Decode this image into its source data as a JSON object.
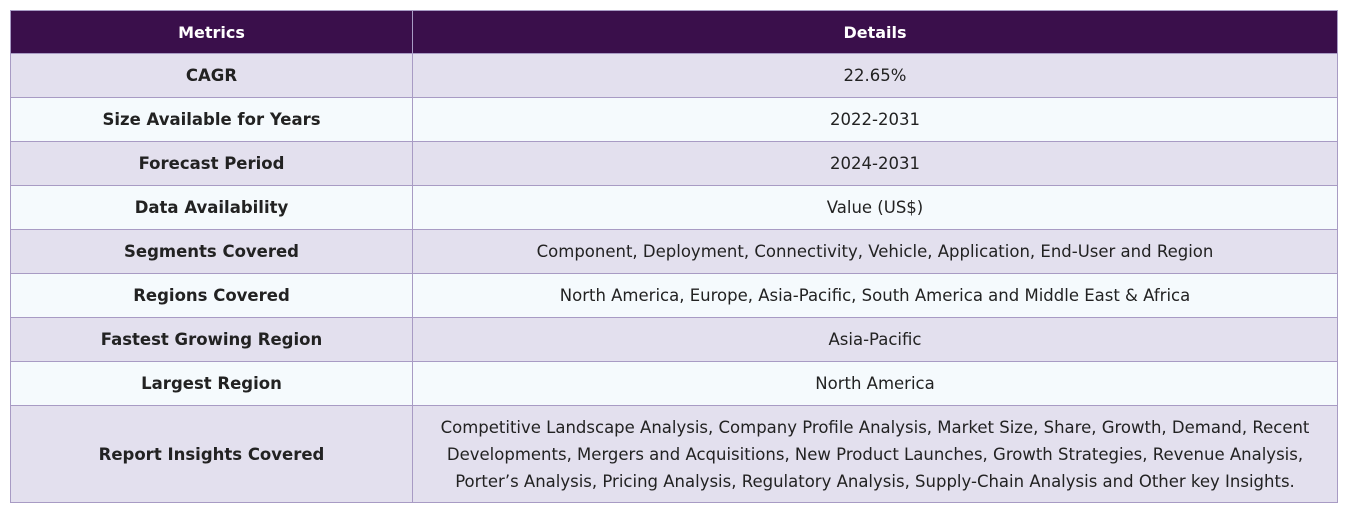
{
  "table": {
    "headers": [
      "Metrics",
      "Details"
    ],
    "rows": [
      {
        "metric": "CAGR",
        "detail": "22.65%"
      },
      {
        "metric": "Size Available for Years",
        "detail": "2022-2031"
      },
      {
        "metric": "Forecast Period",
        "detail": "2024-2031"
      },
      {
        "metric": "Data Availability",
        "detail": "Value (US$)"
      },
      {
        "metric": "Segments Covered",
        "detail": "Component, Deployment, Connectivity, Vehicle, Application, End-User and Region"
      },
      {
        "metric": "Regions Covered",
        "detail": "North America, Europe, Asia-Pacific, South America and Middle East & Africa"
      },
      {
        "metric": "Fastest Growing Region",
        "detail": "Asia-Pacific"
      },
      {
        "metric": "Largest Region",
        "detail": "North America"
      },
      {
        "metric": "Report Insights Covered",
        "detail": "Competitive Landscape Analysis, Company Profile Analysis, Market Size, Share, Growth, Demand, Recent Developments, Mergers and Acquisitions, New Product Launches, Growth Strategies, Revenue Analysis, Porter’s Analysis, Pricing Analysis, Regulatory Analysis, Supply-Chain Analysis and Other key Insights."
      }
    ]
  }
}
